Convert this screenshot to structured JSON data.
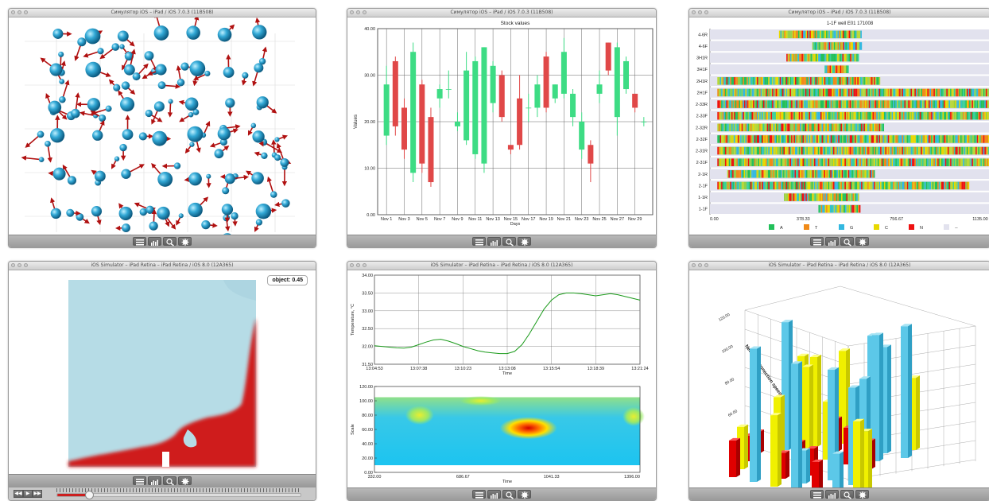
{
  "colors": {
    "bar_up": "#3ddc84",
    "bar_down": "#e04848",
    "atom": "#33a9d6",
    "arrow": "#b01010"
  },
  "windows": {
    "w1": {
      "title": "Симулятор iOS – iPad / iOS 7.0.3 (11B508)"
    },
    "w2": {
      "title": "Симулятор iOS – iPad / iOS 7.0.3 (11B508)"
    },
    "w3": {
      "title": "Симулятор iOS – iPad / iOS 7.0.3 (11B508)"
    },
    "w4": {
      "title": "iOS Simulator – iPad Retina – iPad Retina / iOS 8.0 (12A365)"
    },
    "w5": {
      "title": "iOS Simulator – iPad Retina – iPad Retina / iOS 8.0 (12A365)"
    },
    "w6": {
      "title": "iOS Simulator – iPad Retina – iPad Retina / iOS 8.0 (12A365)"
    }
  },
  "toolbar": {
    "icons": [
      "list-icon",
      "chart-icon",
      "magnifier-icon",
      "gear-icon"
    ]
  },
  "fluid": {
    "badge": "object: 0.45",
    "progress": 0.13
  },
  "player": {
    "rewind": "◀◀",
    "play": "▶",
    "forward": "▶▶"
  },
  "chart_data": [
    {
      "type": "candlestick",
      "title": "Stock values",
      "xlabel": "Days",
      "ylabel": "Values",
      "ylim": [
        0,
        40
      ],
      "yticks": [
        "0.00",
        "10.00",
        "20.00",
        "30.00",
        "40.00"
      ],
      "categories": [
        "Nov 1",
        "Nov 3",
        "Nov 5",
        "Nov 7",
        "Nov 9",
        "Nov 11",
        "Nov 13",
        "Nov 15",
        "Nov 17",
        "Nov 19",
        "Nov 21",
        "Nov 23",
        "Nov 25",
        "Nov 27",
        "Nov 29"
      ],
      "candles": [
        {
          "o": 17,
          "c": 28,
          "h": 32,
          "l": 15
        },
        {
          "o": 33,
          "c": 19,
          "h": 34,
          "l": 17
        },
        {
          "o": 23,
          "c": 14,
          "h": 25,
          "l": 12
        },
        {
          "o": 9,
          "c": 35,
          "h": 37,
          "l": 7
        },
        {
          "o": 28,
          "c": 11,
          "h": 29,
          "l": 9
        },
        {
          "o": 21,
          "c": 7,
          "h": 23,
          "l": 6
        },
        {
          "o": 25,
          "c": 27,
          "h": 28,
          "l": 23
        },
        {
          "o": 27,
          "c": 27,
          "h": 31,
          "l": 25
        },
        {
          "o": 19,
          "c": 20,
          "h": 22,
          "l": 18
        },
        {
          "o": 16,
          "c": 31,
          "h": 35,
          "l": 15
        },
        {
          "o": 13,
          "c": 33,
          "h": 34,
          "l": 12
        },
        {
          "o": 11,
          "c": 36,
          "h": 36,
          "l": 9
        },
        {
          "o": 24,
          "c": 32,
          "h": 33,
          "l": 22
        },
        {
          "o": 30,
          "c": 21,
          "h": 31,
          "l": 20
        },
        {
          "o": 15,
          "c": 14,
          "h": 15,
          "l": 13
        },
        {
          "o": 25,
          "c": 15,
          "h": 30,
          "l": 14
        },
        {
          "o": 23,
          "c": 23,
          "h": 26,
          "l": 20
        },
        {
          "o": 23,
          "c": 28,
          "h": 30,
          "l": 21
        },
        {
          "o": 34,
          "c": 23,
          "h": 35,
          "l": 22
        },
        {
          "o": 25,
          "c": 28,
          "h": 28,
          "l": 24
        },
        {
          "o": 26,
          "c": 35,
          "h": 38,
          "l": 25
        },
        {
          "o": 21,
          "c": 26,
          "h": 27,
          "l": 19
        },
        {
          "o": 14,
          "c": 20,
          "h": 22,
          "l": 12
        },
        {
          "o": 15,
          "c": 11,
          "h": 16,
          "l": 7
        },
        {
          "o": 26,
          "c": 28,
          "h": 31,
          "l": 24
        },
        {
          "o": 37,
          "c": 31,
          "h": 37,
          "l": 30
        },
        {
          "o": 21,
          "c": 36,
          "h": 37,
          "l": 17
        },
        {
          "o": 27,
          "c": 33,
          "h": 34,
          "l": 26
        },
        {
          "o": 26,
          "c": 23,
          "h": 26,
          "l": 22
        },
        {
          "o": 20,
          "c": 20,
          "h": 21,
          "l": 19
        }
      ]
    },
    {
      "type": "bar",
      "title": "1-1F well E01 171008",
      "categories": [
        "4-6R",
        "4-6F",
        "3H1R",
        "3H1F",
        "2H1R",
        "2H1F",
        "2-33R",
        "2-33F",
        "2-32R",
        "2-32F",
        "2-31R",
        "2-31F",
        "2-1R",
        "2-1F",
        "1-1R",
        "1-1F"
      ],
      "ranges": [
        [
          280,
          615
        ],
        [
          415,
          615
        ],
        [
          310,
          600
        ],
        [
          465,
          560
        ],
        [
          30,
          690
        ],
        [
          30,
          1195
        ],
        [
          30,
          1200
        ],
        [
          30,
          1200
        ],
        [
          30,
          705
        ],
        [
          30,
          1240
        ],
        [
          30,
          1240
        ],
        [
          30,
          1250
        ],
        [
          70,
          665
        ],
        [
          30,
          1050
        ],
        [
          300,
          600
        ],
        [
          440,
          610
        ]
      ],
      "xticks": [
        "0.00",
        "378.33",
        "756.67",
        "1135.00"
      ],
      "xlim": [
        0,
        1135
      ],
      "legend": [
        "A",
        "T",
        "G",
        "C",
        "N",
        "--"
      ],
      "legend_colors": [
        "#22c05a",
        "#f08a18",
        "#33b8e0",
        "#e8d800",
        "#ee1111",
        "#e2e2ee"
      ]
    },
    {
      "type": "line",
      "xlabel": "Time",
      "ylabel": "Temperature, °C",
      "ylim": [
        31.5,
        34
      ],
      "yticks": [
        "31.50",
        "32.00",
        "32.50",
        "33.00",
        "33.50",
        "34.00"
      ],
      "xticks": [
        "13:04:53",
        "13:07:38",
        "13:10:23",
        "13:13:08",
        "13:15:54",
        "13:18:39",
        "13:21:24"
      ],
      "series": [
        {
          "values": [
            32.02,
            32.0,
            31.98,
            31.96,
            31.95,
            31.98,
            32.05,
            32.12,
            32.18,
            32.2,
            32.15,
            32.08,
            32.0,
            31.94,
            31.88,
            31.84,
            31.82,
            31.8,
            31.8,
            31.86,
            32.05,
            32.35,
            32.7,
            33.05,
            33.3,
            33.45,
            33.5,
            33.5,
            33.48,
            33.45,
            33.42,
            33.45,
            33.48,
            33.45,
            33.4,
            33.35,
            33.3
          ]
        }
      ]
    },
    {
      "type": "heatmap",
      "xlabel": "Time",
      "ylabel": "Scale",
      "ylim": [
        0,
        120
      ],
      "yticks": [
        "0.00",
        "20.00",
        "40.00",
        "60.00",
        "80.00",
        "100.00",
        "120.00"
      ],
      "xticks": [
        "332.00",
        "686.67",
        "1041.33",
        "1396.00"
      ]
    },
    {
      "type": "bar3d",
      "zlabel": "Network connection speed, kbit/s",
      "zticks": [
        "120.00",
        "100.00",
        "80.00",
        "60.00"
      ]
    }
  ]
}
